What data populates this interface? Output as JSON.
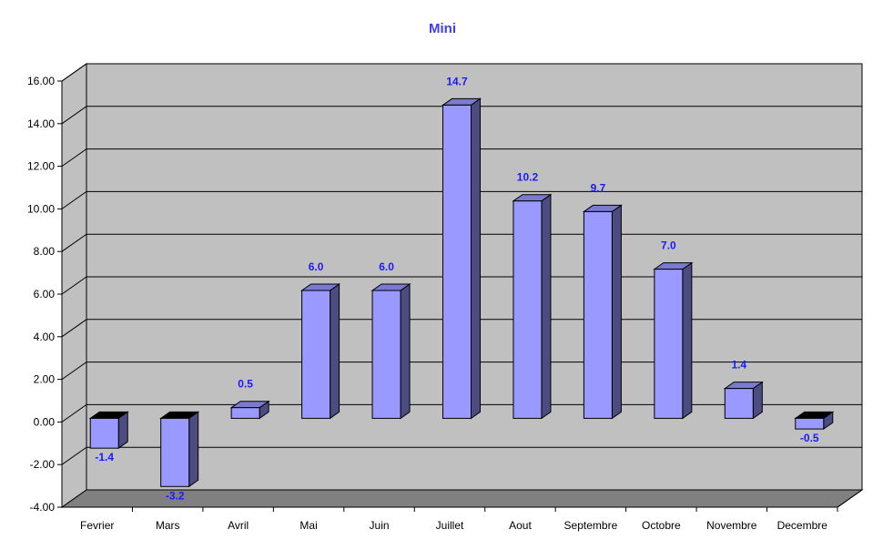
{
  "chart_data": {
    "type": "bar",
    "title": "Mini",
    "categories": [
      "Fevrier",
      "Mars",
      "Avril",
      "Mai",
      "Juin",
      "Juillet",
      "Aout",
      "Septembre",
      "Octobre",
      "Novembre",
      "Decembre"
    ],
    "values": [
      -1.4,
      -3.2,
      0.5,
      6.0,
      6.0,
      14.7,
      10.2,
      9.7,
      7.0,
      1.4,
      -0.5
    ],
    "data_labels": [
      "-1.4",
      "-3.2",
      "0.5",
      "6.0",
      "6.0",
      "14.7",
      "10.2",
      "9.7",
      "7.0",
      "1.4",
      "-0.5"
    ],
    "y_ticks": [
      "-4.00",
      "-2.00",
      "0.00",
      "2.00",
      "4.00",
      "6.00",
      "8.00",
      "10.00",
      "12.00",
      "14.00",
      "16.00"
    ],
    "ylim": [
      -4,
      16
    ],
    "grid": true,
    "legend": "none",
    "colors": {
      "bar_front": "#9999ff",
      "bar_side": "#4c4c80",
      "bar_top_positive": "#7a7ad0",
      "bar_top_negative": "#000000",
      "wall": "#c0c0c0",
      "floor": "#808080",
      "title": "#3d3dff",
      "data_label": "#1a1aff"
    }
  }
}
